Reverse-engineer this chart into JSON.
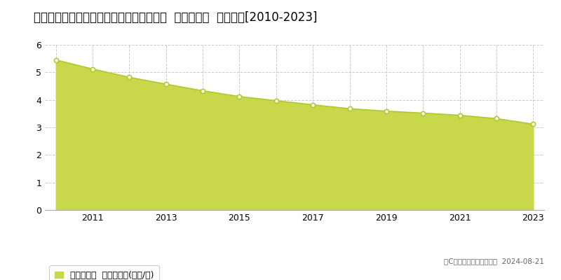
{
  "title": "秋田県鹿角市十和田毛馬内字毛馬内９５番  基準地価格  地価推移[2010-2023]",
  "years": [
    2010,
    2011,
    2012,
    2013,
    2014,
    2015,
    2016,
    2017,
    2018,
    2019,
    2020,
    2021,
    2022,
    2023
  ],
  "values": [
    5.45,
    5.12,
    4.82,
    4.57,
    4.33,
    4.12,
    3.97,
    3.82,
    3.68,
    3.59,
    3.52,
    3.44,
    3.32,
    3.12
  ],
  "ylim": [
    0,
    6
  ],
  "yticks": [
    0,
    1,
    2,
    3,
    4,
    5,
    6
  ],
  "fill_color": "#c8d84a",
  "line_color": "#b0c830",
  "marker_facecolor": "#ffffff",
  "marker_edgecolor": "#b0c830",
  "background_color": "#ffffff",
  "plot_bg_color": "#ffffff",
  "grid_color": "#cccccc",
  "legend_label": "基準地価格  平均坪単価(万円/坪)",
  "copyright_text": "（C）土地価格ドットコム  2024-08-21",
  "title_fontsize": 12,
  "axis_fontsize": 9,
  "legend_fontsize": 9
}
